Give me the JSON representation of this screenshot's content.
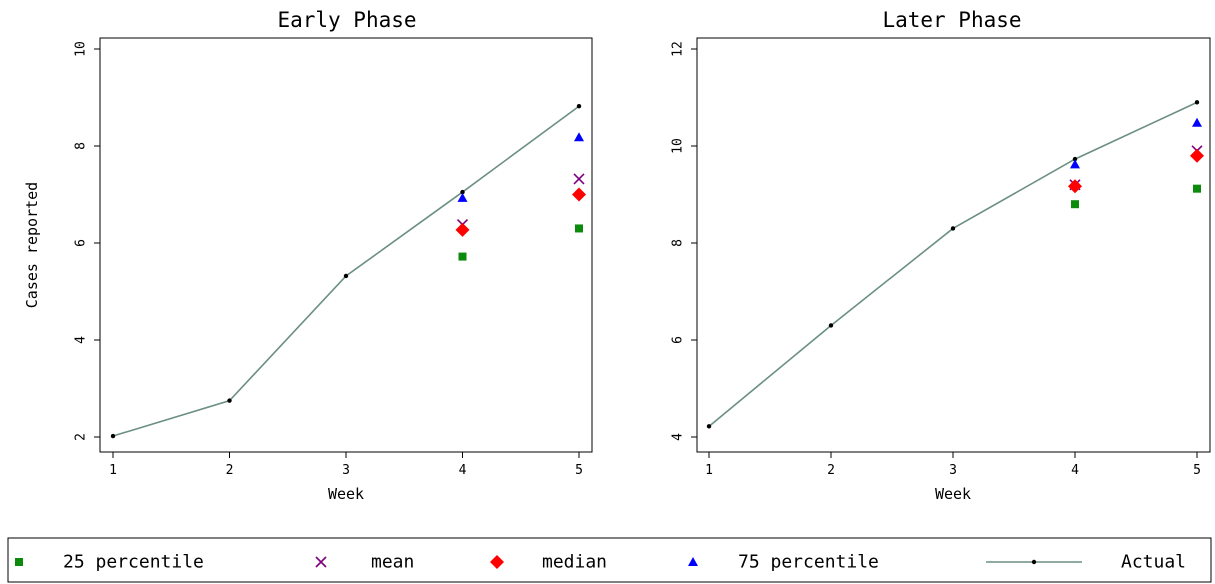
{
  "chart_data": [
    {
      "type": "line",
      "title": "Early Phase",
      "xlabel": "Week",
      "ylabel": "Cases reported",
      "x_ticks": [
        1,
        2,
        3,
        4,
        5
      ],
      "y_ticks": [
        2,
        4,
        6,
        8,
        10
      ],
      "xlim": [
        0.9,
        5.05
      ],
      "ylim": [
        1.8,
        10.2
      ],
      "grid": false,
      "series": [
        {
          "name": "Actual",
          "x": [
            1,
            2,
            3,
            4,
            5
          ],
          "y": [
            2.02,
            2.75,
            5.32,
            7.05,
            8.82
          ],
          "color": "#6b8f80"
        },
        {
          "name": "25 percentile",
          "x": [
            4,
            5
          ],
          "y": [
            5.72,
            6.3
          ],
          "color": "#0b8a0b"
        },
        {
          "name": "mean",
          "x": [
            4,
            5
          ],
          "y": [
            6.38,
            7.32
          ],
          "color": "#7f007f"
        },
        {
          "name": "median",
          "x": [
            4,
            5
          ],
          "y": [
            6.27,
            7.0
          ],
          "color": "#ff0000"
        },
        {
          "name": "75 percentile",
          "x": [
            4,
            5
          ],
          "y": [
            6.93,
            8.18
          ],
          "color": "#0000ff"
        }
      ]
    },
    {
      "type": "line",
      "title": "Later Phase",
      "xlabel": "Week",
      "ylabel": "",
      "x_ticks": [
        1,
        2,
        3,
        4,
        5
      ],
      "y_ticks": [
        4,
        6,
        8,
        10,
        12
      ],
      "xlim": [
        0.9,
        5.05
      ],
      "ylim": [
        3.8,
        12.2
      ],
      "grid": false,
      "series": [
        {
          "name": "Actual",
          "x": [
            1,
            2,
            3,
            4,
            5
          ],
          "y": [
            4.22,
            6.3,
            8.3,
            9.73,
            10.9
          ],
          "color": "#6b8f80"
        },
        {
          "name": "25 percentile",
          "x": [
            4,
            5
          ],
          "y": [
            8.8,
            9.12
          ],
          "color": "#0b8a0b"
        },
        {
          "name": "mean",
          "x": [
            4,
            5
          ],
          "y": [
            9.2,
            9.9
          ],
          "color": "#7f007f"
        },
        {
          "name": "median",
          "x": [
            4,
            5
          ],
          "y": [
            9.17,
            9.8
          ],
          "color": "#ff0000"
        },
        {
          "name": "75 percentile",
          "x": [
            4,
            5
          ],
          "y": [
            9.62,
            10.48
          ],
          "color": "#0000ff"
        }
      ]
    }
  ],
  "legend": {
    "placement": "bottom",
    "items": [
      {
        "label": "25 percentile",
        "marker": "square",
        "color": "#0b8a0b"
      },
      {
        "label": "mean",
        "marker": "x",
        "color": "#7f007f"
      },
      {
        "label": "median",
        "marker": "diamond",
        "color": "#ff0000"
      },
      {
        "label": "75 percentile",
        "marker": "triangle",
        "color": "#0000ff"
      },
      {
        "label": "Actual",
        "marker": "line-dot",
        "color": "#6b8f80"
      }
    ]
  }
}
